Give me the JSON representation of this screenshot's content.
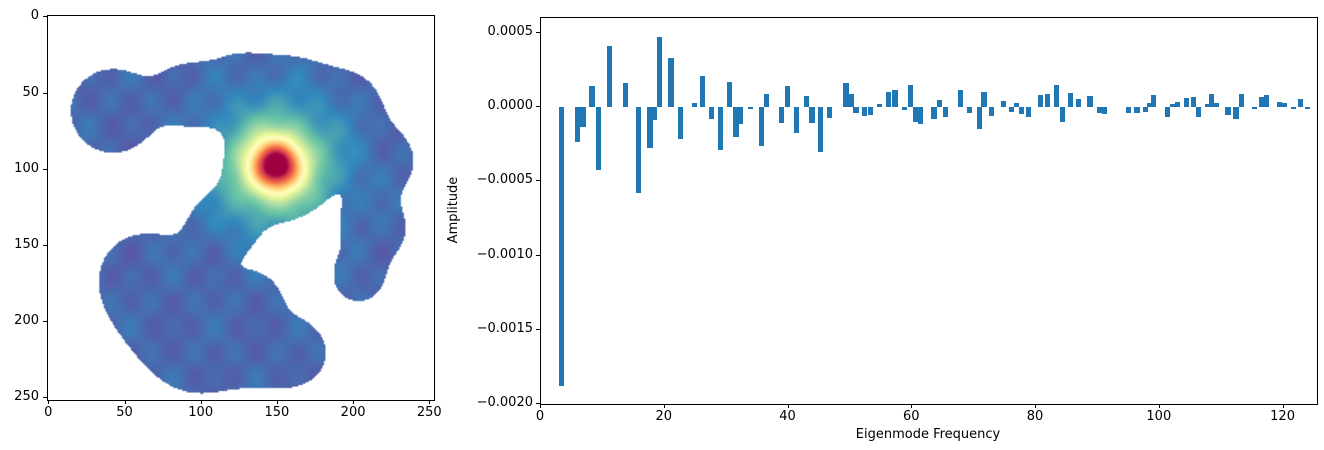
{
  "figure": {
    "background": "#ffffff"
  },
  "left_plot": {
    "xtick_labels": [
      "0",
      "50",
      "100",
      "150",
      "200",
      "250"
    ],
    "ytick_labels": [
      "0",
      "50",
      "100",
      "150",
      "200",
      "250"
    ],
    "xtick_values": [
      0,
      50,
      100,
      150,
      200,
      250
    ],
    "ytick_values": [
      0,
      50,
      100,
      150,
      200,
      250
    ]
  },
  "right_plot": {
    "xlabel": "Eigenmode Frequency",
    "ylabel": "Amplitude",
    "xticks": [
      {
        "v": 0,
        "label": "0"
      },
      {
        "v": 20,
        "label": "20"
      },
      {
        "v": 40,
        "label": "40"
      },
      {
        "v": 60,
        "label": "60"
      },
      {
        "v": 80,
        "label": "80"
      },
      {
        "v": 100,
        "label": "100"
      },
      {
        "v": 120,
        "label": "120"
      }
    ],
    "yticks": [
      {
        "v": 0.0005,
        "label": "0.0005"
      },
      {
        "v": 0.0,
        "label": "0.0000"
      },
      {
        "v": -0.0005,
        "label": "−0.0005"
      },
      {
        "v": -0.001,
        "label": "−0.0010"
      },
      {
        "v": -0.0015,
        "label": "−0.0015"
      },
      {
        "v": -0.002,
        "label": "−0.0020"
      }
    ]
  },
  "chart_data": [
    {
      "type": "heatmap",
      "title": "",
      "description": "Irregular blob-shaped domain shown with an imshow-style colormap; bright localized source centered near (150, 100); white outside the domain.",
      "axes": {
        "xlim": [
          0,
          252
        ],
        "ylim_top_to_bottom": [
          0,
          252
        ],
        "origin": "upper"
      },
      "colormap": "Spectral_r",
      "colormap_stops": [
        "#5e4fa2",
        "#3288bd",
        "#66c2a5",
        "#abdda4",
        "#e6f598",
        "#ffffbf",
        "#fee08b",
        "#fdae61",
        "#f46d43",
        "#d53e4f",
        "#9e0142"
      ],
      "outside_color": "#ffffff",
      "background_level": 0.045,
      "hotspot": {
        "x": 149,
        "y": 98,
        "amp1": 0.85,
        "s1": 280,
        "amp2": 0.25,
        "s2": 1600
      },
      "blob_metaballs": [
        [
          42,
          62,
          33
        ],
        [
          92,
          50,
          20
        ],
        [
          125,
          45,
          22
        ],
        [
          158,
          50,
          25
        ],
        [
          150,
          100,
          42
        ],
        [
          195,
          60,
          26
        ],
        [
          220,
          95,
          22
        ],
        [
          215,
          140,
          22
        ],
        [
          203,
          172,
          18
        ],
        [
          112,
          140,
          20
        ],
        [
          80,
          192,
          40
        ],
        [
          60,
          170,
          25
        ],
        [
          100,
          220,
          28
        ],
        [
          135,
          186,
          16
        ],
        [
          140,
          218,
          26
        ],
        [
          163,
          222,
          20
        ]
      ],
      "threshold": 0.5
    },
    {
      "type": "bar",
      "title": "",
      "xlabel": "Eigenmode Frequency",
      "ylabel": "Amplitude",
      "xlim": [
        0,
        125.4
      ],
      "ylim": [
        -0.002,
        0.0006
      ],
      "bar_color": "#1f77b4",
      "bar_width": 0.85,
      "x": [
        3.35,
        5.9,
        6.8,
        8.25,
        9.3,
        11.1,
        13.7,
        15.7,
        17.6,
        18.4,
        19.2,
        21.0,
        22.5,
        24.8,
        26.1,
        27.6,
        29.0,
        30.5,
        31.5,
        32.3,
        33.8,
        35.6,
        36.5,
        38.9,
        39.8,
        41.3,
        42.9,
        43.8,
        45.1,
        46.6,
        49.3,
        50.1,
        50.9,
        52.3,
        53.3,
        54.7,
        56.1,
        57.2,
        58.8,
        59.7,
        60.5,
        61.3,
        63.5,
        64.4,
        65.3,
        67.8,
        69.3,
        70.8,
        71.6,
        72.8,
        74.7,
        76.0,
        76.8,
        77.7,
        78.8,
        80.7,
        81.9,
        83.3,
        84.3,
        85.5,
        86.9,
        88.7,
        90.2,
        91.1,
        95.0,
        96.3,
        97.7,
        98.4,
        99.0,
        101.3,
        102.0,
        102.8,
        104.3,
        105.4,
        106.2,
        107.7,
        108.4,
        109.2,
        111.0,
        112.3,
        113.2,
        115.3,
        116.4,
        117.2,
        119.4,
        120.1,
        121.6,
        122.7,
        123.9
      ],
      "values": [
        -0.00188,
        -0.000235,
        -0.000133,
        0.00014,
        -0.000423,
        0.000415,
        0.000162,
        -0.00058,
        -0.000275,
        -8.7e-05,
        0.000475,
        0.00033,
        -0.000215,
        3e-05,
        0.000212,
        -8.3e-05,
        -0.000292,
        0.000167,
        -0.0002,
        -0.000115,
        -1.5e-05,
        -0.000264,
        9e-05,
        -0.000105,
        0.000144,
        -0.000173,
        7.6e-05,
        -0.000105,
        -0.000303,
        -7.6e-05,
        0.000162,
        9e-05,
        -4.2e-05,
        -6e-05,
        -5.3e-05,
        2e-05,
        9.9e-05,
        0.000112,
        -1.9e-05,
        0.000151,
        -0.0001,
        -0.000115,
        -8.3e-05,
        4.9e-05,
        -7e-05,
        0.000112,
        -4.2e-05,
        -0.000151,
        9.9e-05,
        -6e-05,
        4.4e-05,
        -3.1e-05,
        3e-05,
        -4.7e-05,
        -6.9e-05,
        8.3e-05,
        9e-05,
        0.000151,
        -9.9e-05,
        9.4e-05,
        5.3e-05,
        7.6e-05,
        -3.7e-05,
        -4.7e-05,
        -3.7e-05,
        -3.7e-05,
        -3.1e-05,
        3e-05,
        8.3e-05,
        -6.9e-05,
        2e-05,
        3.7e-05,
        6e-05,
        6.7e-05,
        -6.5e-05,
        2e-05,
        9e-05,
        3e-05,
        -5.3e-05,
        -8.3e-05,
        9e-05,
        -1.2e-05,
        7e-05,
        8e-05,
        3.7e-05,
        3.1e-05,
        -1.5e-05,
        5.3e-05,
        -1.2e-05
      ]
    }
  ]
}
